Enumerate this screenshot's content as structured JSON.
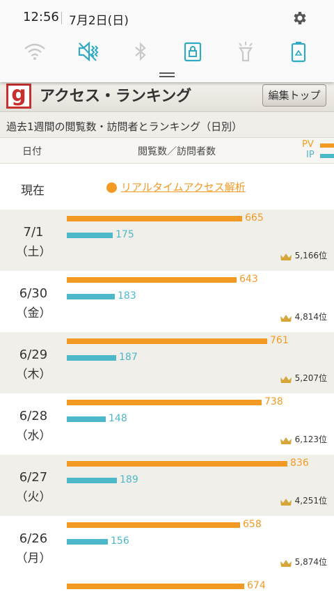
{
  "status": {
    "time": "12:56",
    "date": "7月2日(日)"
  },
  "quick_settings": [
    "wifi-icon",
    "vibrate-icon",
    "bluetooth-icon",
    "screen-lock-icon",
    "flashlight-icon",
    "battery-saver-icon"
  ],
  "header": {
    "title": "アクセス・ランキング",
    "edit_button": "編集トップ",
    "logo": "g"
  },
  "subtitle": "過去1週間の閲覧数・訪問者とランキング（日別）",
  "columns": {
    "date": "日付",
    "main": "閲覧数／訪問者数",
    "legend_pv": "PV",
    "legend_ip": "IP"
  },
  "now": {
    "label": "現在",
    "link": "リアルタイムアクセス解析"
  },
  "colors": {
    "pv": "#f39a25",
    "ip": "#4db8ca"
  },
  "chart_data": {
    "type": "bar",
    "categories": [
      "7/1（土）",
      "6/30（金）",
      "6/29（木）",
      "6/28（水）",
      "6/27（火）",
      "6/26（月）"
    ],
    "series": [
      {
        "name": "PV",
        "values": [
          665,
          643,
          761,
          738,
          836,
          658
        ]
      },
      {
        "name": "IP",
        "values": [
          175,
          183,
          187,
          148,
          189,
          156
        ]
      }
    ]
  },
  "rows": [
    {
      "date": "7/1",
      "weekday": "（土）",
      "pv": "665",
      "ip": "175",
      "rank": "5,166位"
    },
    {
      "date": "6/30",
      "weekday": "（金）",
      "pv": "643",
      "ip": "183",
      "rank": "4,814位"
    },
    {
      "date": "6/29",
      "weekday": "（木）",
      "pv": "761",
      "ip": "187",
      "rank": "5,207位"
    },
    {
      "date": "6/28",
      "weekday": "（水）",
      "pv": "738",
      "ip": "148",
      "rank": "6,123位"
    },
    {
      "date": "6/27",
      "weekday": "（火）",
      "pv": "836",
      "ip": "189",
      "rank": "4,251位"
    },
    {
      "date": "6/26",
      "weekday": "（月）",
      "pv": "658",
      "ip": "156",
      "rank": "5,874位"
    }
  ],
  "partial_row": {
    "pv": "674"
  }
}
